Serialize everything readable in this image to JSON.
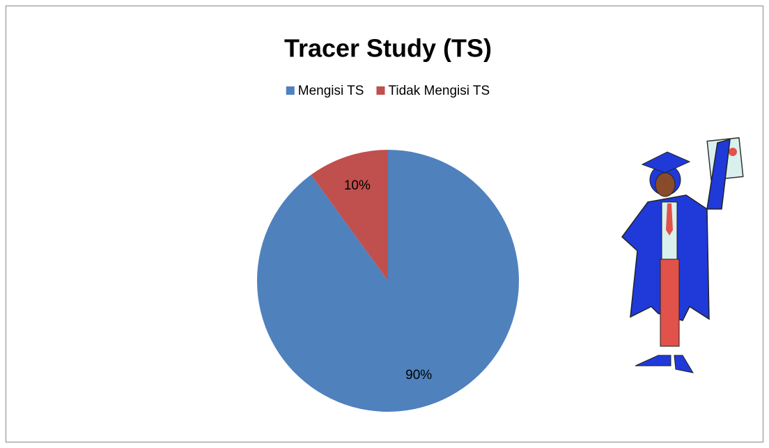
{
  "chart_data": {
    "type": "pie",
    "title": "Tracer Study (TS)",
    "categories": [
      "Mengisi TS",
      "Tidak Mengisi TS"
    ],
    "values": [
      90,
      10
    ],
    "value_labels": [
      "90%",
      "10%"
    ],
    "colors": [
      "#4f81bd",
      "#c0504d"
    ],
    "legend": "top"
  }
}
